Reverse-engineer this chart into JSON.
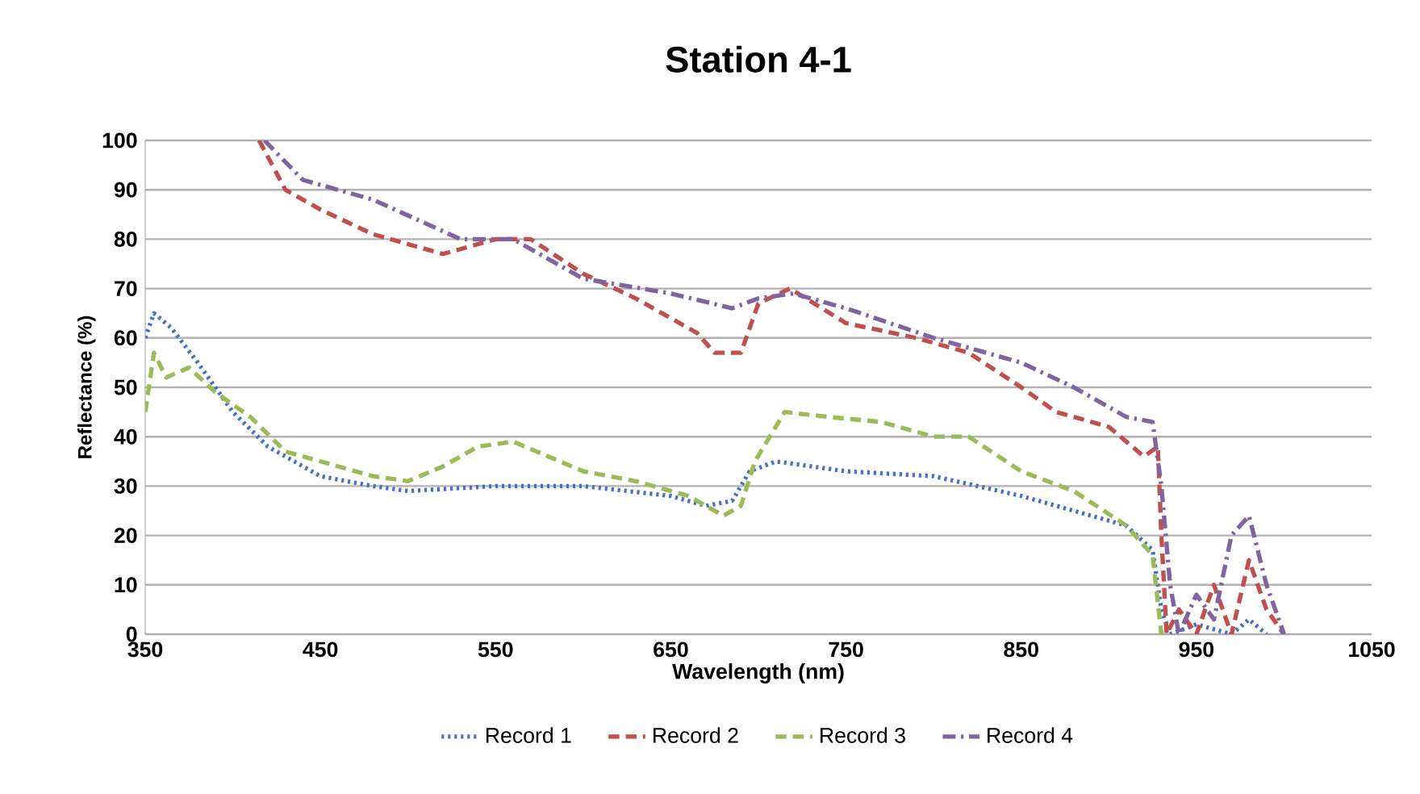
{
  "chart_data": {
    "type": "line",
    "title": "Station 4-1",
    "xlabel": "Wavelength (nm)",
    "ylabel": "Reflectance (%)",
    "xlim": [
      350,
      1050
    ],
    "xticks": [
      350,
      450,
      550,
      650,
      750,
      850,
      950,
      1050
    ],
    "ylim": [
      0,
      100
    ],
    "yticks": [
      0,
      10,
      20,
      30,
      40,
      50,
      60,
      70,
      80,
      90,
      100
    ],
    "grid": "y",
    "legend": "bottom",
    "series": [
      {
        "name": "Record 1",
        "color": "#4472c4",
        "line_style": "dotted",
        "x": [
          350,
          355,
          365,
          380,
          400,
          420,
          450,
          480,
          500,
          550,
          600,
          650,
          670,
          685,
          695,
          710,
          750,
          800,
          850,
          880,
          910,
          925,
          930,
          935,
          950,
          970,
          980,
          990
        ],
        "values": [
          60,
          65,
          62,
          55,
          45,
          38,
          32,
          30,
          29,
          30,
          30,
          28,
          26,
          27,
          33,
          35,
          33,
          32,
          28,
          25,
          22,
          17,
          5,
          0,
          2,
          0,
          3,
          0
        ]
      },
      {
        "name": "Record 2",
        "color": "#c0504d",
        "line_style": "dashed",
        "x": [
          415,
          430,
          450,
          480,
          500,
          520,
          550,
          570,
          600,
          630,
          665,
          675,
          690,
          700,
          718,
          750,
          790,
          820,
          850,
          870,
          900,
          920,
          928,
          930,
          933,
          940,
          950,
          960,
          970,
          980,
          990,
          1000
        ],
        "values": [
          100,
          90,
          86,
          81,
          79,
          77,
          80,
          80,
          73,
          68,
          61,
          57,
          57,
          67,
          70,
          63,
          60,
          57,
          50,
          45,
          42,
          36,
          38,
          20,
          0,
          5,
          0,
          10,
          0,
          15,
          5,
          0
        ]
      },
      {
        "name": "Record 3",
        "color": "#9bbb59",
        "line_style": "dashed",
        "x": [
          350,
          355,
          362,
          375,
          390,
          410,
          430,
          450,
          480,
          500,
          520,
          540,
          560,
          580,
          600,
          630,
          660,
          680,
          690,
          698,
          715,
          740,
          770,
          800,
          820,
          850,
          880,
          910,
          925,
          930
        ],
        "values": [
          45,
          57,
          52,
          54,
          49,
          44,
          37,
          35,
          32,
          31,
          34,
          38,
          39,
          36,
          33,
          31,
          28,
          24,
          26,
          35,
          45,
          44,
          43,
          40,
          40,
          33,
          29,
          22,
          16,
          0
        ]
      },
      {
        "name": "Record 4",
        "color": "#8064a2",
        "line_style": "dashdot",
        "x": [
          418,
          440,
          480,
          530,
          560,
          600,
          650,
          685,
          700,
          720,
          750,
          800,
          850,
          880,
          910,
          925,
          930,
          935,
          940,
          950,
          960,
          970,
          980,
          990,
          1000
        ],
        "values": [
          100,
          92,
          88,
          80,
          80,
          72,
          69,
          66,
          68,
          69,
          66,
          60,
          55,
          50,
          44,
          43,
          30,
          10,
          0,
          8,
          3,
          20,
          24,
          10,
          0
        ]
      }
    ]
  }
}
